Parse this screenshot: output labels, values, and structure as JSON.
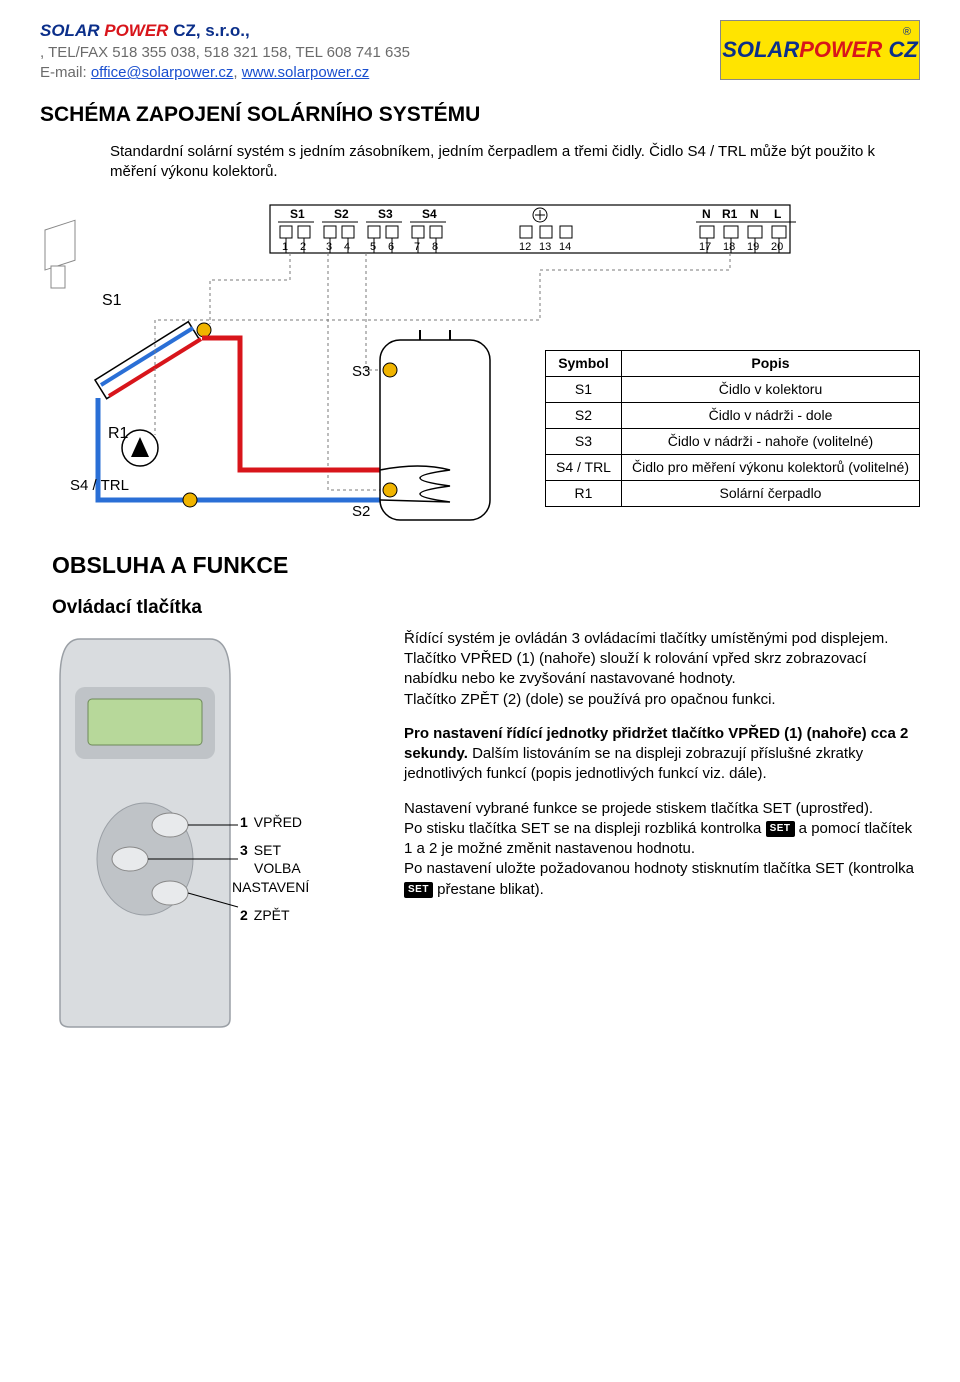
{
  "header": {
    "company_solar": "SOLAR",
    "company_power": "POWER",
    "company_rest": " CZ, s.r.o.",
    "telfax": ", TEL/FAX 518 355 038, 518 321 158, TEL 608 741 635",
    "email_label": "E-mail: ",
    "email": "office@solarpower.cz",
    "web_sep": ", ",
    "web": "www.solarpower.cz",
    "logo_solar": "SOLAR",
    "logo_power": "POWER",
    "logo_cz": " CZ",
    "logo_reg": "®"
  },
  "title": "SCHÉMA ZAPOJENÍ SOLÁRNÍHO SYSTÉMU",
  "intro": "Standardní solární systém s jedním zásobníkem, jedním čerpadlem a třemi čidly. Čidlo S4 / TRL může být použito k měření výkonu kolektorů.",
  "wiring": {
    "terminal_groups": [
      {
        "label": "S1",
        "pins": [
          "1",
          "2"
        ]
      },
      {
        "label": "S2",
        "pins": [
          "3",
          "4"
        ]
      },
      {
        "label": "S3",
        "pins": [
          "5",
          "6"
        ]
      },
      {
        "label": "S4",
        "pins": [
          "7",
          "8"
        ]
      }
    ],
    "terminal_mid_pins": [
      "12",
      "13",
      "14"
    ],
    "terminal_right": [
      {
        "label": "N",
        "pin": "17"
      },
      {
        "label": "R1",
        "pin": "18"
      },
      {
        "label": "N",
        "pin": "19"
      },
      {
        "label": "L",
        "pin": "20"
      }
    ],
    "s1_label": "S1",
    "r1_label": "R1",
    "s4trl_label": "S4 / TRL",
    "s3_label": "S3",
    "s2_label": "S2"
  },
  "symbol_table": {
    "head": [
      "Symbol",
      "Popis"
    ],
    "rows": [
      [
        "S1",
        "Čidlo v kolektoru"
      ],
      [
        "S2",
        "Čidlo v nádrži - dole"
      ],
      [
        "S3",
        "Čidlo v nádrži - nahoře (volitelné)"
      ],
      [
        "S4 / TRL",
        "Čidlo pro měření výkonu kolektorů (volitelné)"
      ],
      [
        "R1",
        "Solární čerpadlo"
      ]
    ]
  },
  "obsluha_title": "OBSLUHA A FUNKCE",
  "ovladaci_title": "Ovládací tlačítka",
  "buttons": {
    "b1_num": "1",
    "b1_label": "VPŘED",
    "b3_num": "3",
    "b3_line1": "SET",
    "b3_line2": "VOLBA",
    "b3_line3": "NASTAVENÍ",
    "b2_num": "2",
    "b2_label": "ZPĚT"
  },
  "desc": {
    "p1": "Řídící systém je ovládán 3 ovládacími tlačítky umístěnými pod displejem.",
    "p2": "Tlačítko VPŘED (1) (nahoře) slouží k rolování vpřed skrz zobrazovací nabídku nebo ke zvyšování nastavované hodnoty.",
    "p3": "Tlačítko ZPĚT (2) (dole) se používá pro opačnou funkci.",
    "p4a": "Pro nastavení řídící jednotky přidržet tlačítko VPŘED (1) (nahoře) cca 2 sekundy.",
    "p4b": " Dalším listováním se na displeji zobrazují příslušné zkratky jednotlivých funkcí (popis jednotlivých funkcí viz. dále).",
    "p5": "Nastavení vybrané funkce se projede stiskem tlačítka SET (uprostřed).",
    "p6a": "Po stisku tlačítka SET se na displeji rozbliká kontrolka ",
    "p6b": " a pomocí tlačítek 1 a 2 je možné změnit nastavenou hodnotu.",
    "p7a": "Po nastavení uložte požadovanou hodnoty stisknutím tlačítka SET (kontrolka ",
    "p7b": " přestane blikat).",
    "set_glyph": "SET"
  },
  "colors": {
    "hot": "#d8151b",
    "cold": "#2a6fd6",
    "dash": "#7a7a7a",
    "device_body": "#d9dcdf",
    "device_dark": "#bfc3c7",
    "display": "#b7d89a",
    "yellow": "#f0b400"
  }
}
